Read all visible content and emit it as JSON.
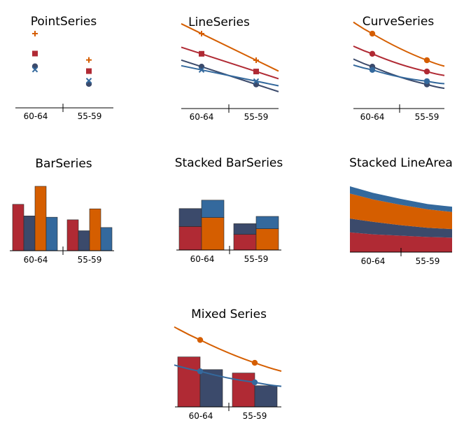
{
  "colors": {
    "red": "#b02a34",
    "slate": "#3b4a6b",
    "orange": "#d55e00",
    "blue": "#34699d"
  },
  "chart_data": [
    {
      "type": "scatter",
      "title": "PointSeries",
      "categories": [
        "60-64",
        "55-59"
      ],
      "ylim": [
        0,
        100
      ],
      "series": [
        {
          "values": [
            93,
            60
          ],
          "color": "orange",
          "marker": "plus"
        },
        {
          "values": [
            68,
            46
          ],
          "color": "red",
          "marker": "square"
        },
        {
          "values": [
            52,
            30
          ],
          "color": "slate",
          "marker": "circle"
        },
        {
          "values": [
            48,
            34
          ],
          "color": "blue",
          "marker": "cross"
        }
      ]
    },
    {
      "type": "line",
      "title": "LineSeries",
      "categories": [
        "60-64",
        "55-59"
      ],
      "ylim": [
        0,
        100
      ],
      "series": [
        {
          "values": [
            93,
            60
          ],
          "color": "orange",
          "marker": "plus"
        },
        {
          "values": [
            68,
            46
          ],
          "color": "red",
          "marker": "square"
        },
        {
          "values": [
            52,
            30
          ],
          "color": "slate",
          "marker": "circle"
        },
        {
          "values": [
            48,
            34
          ],
          "color": "blue",
          "marker": "cross"
        }
      ]
    },
    {
      "type": "line",
      "title": "CurveSeries",
      "categories": [
        "60-64",
        "55-59"
      ],
      "ylim": [
        0,
        100
      ],
      "series": [
        {
          "values": [
            93,
            60
          ],
          "color": "orange",
          "marker": "circle"
        },
        {
          "values": [
            68,
            46
          ],
          "color": "red",
          "marker": "circle"
        },
        {
          "values": [
            52,
            30
          ],
          "color": "slate",
          "marker": "circle"
        },
        {
          "values": [
            48,
            34
          ],
          "color": "blue",
          "marker": "circle"
        }
      ]
    },
    {
      "type": "bar",
      "title": "BarSeries",
      "categories": [
        "60-64",
        "55-59"
      ],
      "ylim": [
        0,
        100
      ],
      "series": [
        {
          "values": [
            72,
            48
          ],
          "color": "red"
        },
        {
          "values": [
            54,
            31
          ],
          "color": "slate"
        },
        {
          "values": [
            100,
            65
          ],
          "color": "orange"
        },
        {
          "values": [
            52,
            36
          ],
          "color": "blue"
        }
      ]
    },
    {
      "type": "bar",
      "stacked": true,
      "title": "Stacked BarSeries",
      "categories": [
        "60-64",
        "55-59"
      ],
      "ylim": [
        0,
        100
      ],
      "groups": [
        [
          {
            "values": [
              42,
              28
            ],
            "color": "red"
          },
          {
            "values": [
              32,
              19
            ],
            "color": "slate"
          }
        ],
        [
          {
            "values": [
              58,
              38
            ],
            "color": "orange"
          },
          {
            "values": [
              31,
              22
            ],
            "color": "blue"
          }
        ]
      ]
    },
    {
      "type": "area",
      "stacked": true,
      "title": "Stacked LineArea",
      "categories": [
        "60-64",
        "55-59"
      ],
      "ylim": [
        0,
        100
      ],
      "x": [
        -0.5,
        0,
        0.5,
        1,
        1.5
      ],
      "series": [
        {
          "values": [
            30,
            27,
            25,
            23,
            22
          ],
          "color": "red"
        },
        {
          "values": [
            21,
            19,
            16,
            14,
            13
          ],
          "color": "slate"
        },
        {
          "values": [
            38,
            34,
            31,
            28,
            26
          ],
          "color": "orange"
        },
        {
          "values": [
            11,
            10,
            9,
            8,
            8
          ],
          "color": "blue"
        }
      ]
    },
    {
      "type": "bar",
      "title": "Mixed Series",
      "categories": [
        "60-64",
        "55-59"
      ],
      "ylim": [
        0,
        100
      ],
      "series": [
        {
          "values": [
            59,
            40
          ],
          "color": "red"
        },
        {
          "values": [
            44,
            25
          ],
          "color": "slate"
        }
      ],
      "lines": [
        {
          "values": [
            79,
            52
          ],
          "color": "orange",
          "marker": "circle"
        },
        {
          "values": [
            42,
            29
          ],
          "color": "blue",
          "marker": "circle"
        }
      ]
    }
  ]
}
